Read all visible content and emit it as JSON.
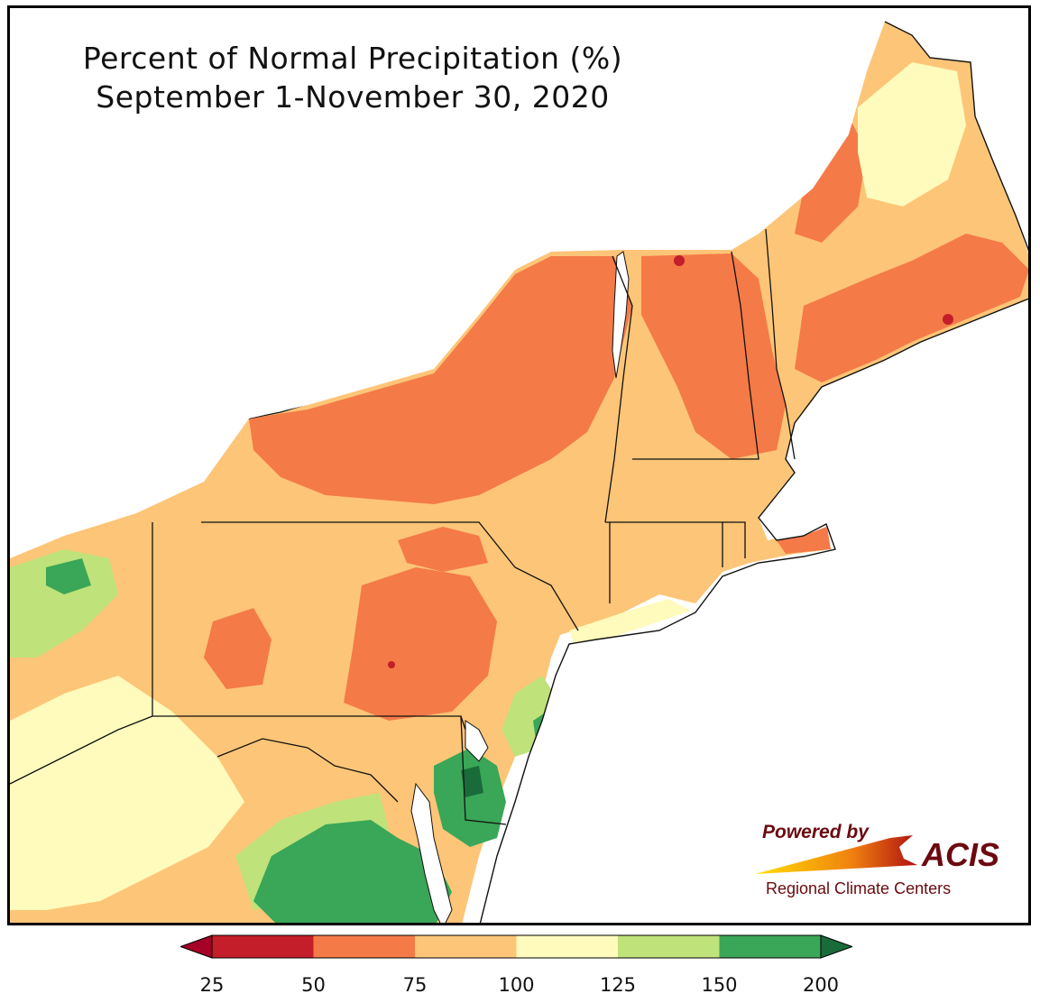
{
  "title": "Percent of Normal Precipitation (%)",
  "subtitle": "September 1-November 30, 2020",
  "logo": {
    "powered_by": "Powered by",
    "brand": "ACIS",
    "org": "Regional Climate Centers"
  },
  "legend": {
    "ticks": [
      "25",
      "50",
      "75",
      "100",
      "125",
      "150",
      "200"
    ],
    "bins": [
      {
        "range": "25-50",
        "color": "#c41e2a"
      },
      {
        "range": "50-75",
        "color": "#f47a48"
      },
      {
        "range": "75-100",
        "color": "#fdc577"
      },
      {
        "range": "100-125",
        "color": "#fefbbc"
      },
      {
        "range": "125-150",
        "color": "#bfe27a"
      },
      {
        "range": "150-200",
        "color": "#3aa657"
      }
    ],
    "under_color": "#a50026",
    "over_color": "#1a6b3a"
  },
  "colors": {
    "water": "#ffffff",
    "state_border": "#111111",
    "county_border": "#9a9a9a"
  }
}
